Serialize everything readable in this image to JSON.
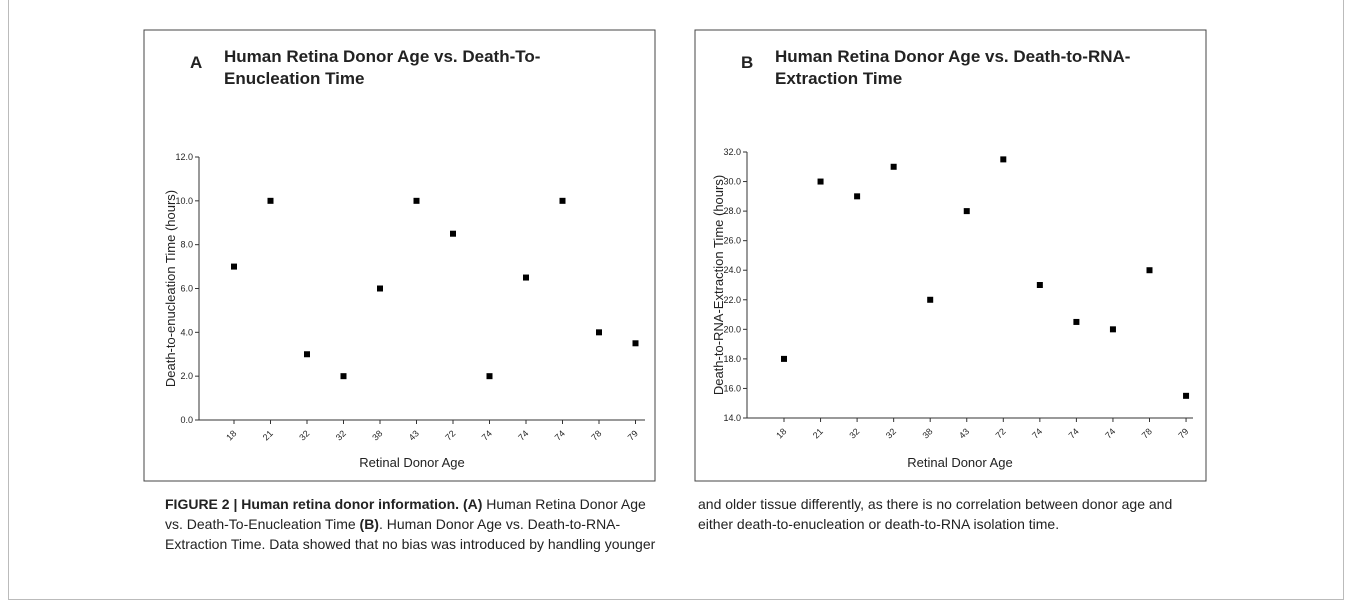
{
  "charts": [
    {
      "panel": "A",
      "type": "scatter",
      "title": [
        "Human Retina Donor Age vs. Death-To-",
        "Enucleation Time"
      ],
      "x_label": "Retinal Donor Age",
      "y_label": "Death-to-enucleation Time (hours)",
      "categories": [
        "18",
        "21",
        "32",
        "32",
        "38",
        "43",
        "72",
        "74",
        "74",
        "74",
        "78",
        "79"
      ],
      "values": [
        7.0,
        10.0,
        3.0,
        2.0,
        6.0,
        10.0,
        8.5,
        2.0,
        6.5,
        10.0,
        4.0,
        3.5
      ],
      "color": "#000000",
      "ylim": [
        0,
        12
      ],
      "yticks": [
        {
          "value": 0,
          "label": "0.0"
        },
        {
          "value": 2,
          "label": "2.0"
        },
        {
          "value": 4,
          "label": "4.0"
        },
        {
          "value": 6,
          "label": "6.0"
        },
        {
          "value": 8,
          "label": "8.0"
        },
        {
          "value": 10,
          "label": "10.0"
        },
        {
          "value": 12,
          "label": "12.0"
        }
      ]
    },
    {
      "panel": "B",
      "type": "scatter",
      "title": [
        "Human Retina Donor Age vs. Death-to-RNA-",
        "Extraction Time"
      ],
      "x_label": "Retinal Donor Age",
      "y_label": "Death-to-RNA-Extraction Time (hours)",
      "categories": [
        "18",
        "21",
        "32",
        "32",
        "38",
        "43",
        "72",
        "74",
        "74",
        "74",
        "78",
        "79"
      ],
      "values": [
        18.0,
        30.0,
        29.0,
        31.0,
        22.0,
        28.0,
        31.5,
        23.0,
        20.5,
        20.0,
        24.0,
        15.5
      ],
      "color": "#000000",
      "ylim": [
        14,
        32
      ],
      "yticks": [
        {
          "value": 14,
          "label": "14.0"
        },
        {
          "value": 16,
          "label": "16.0"
        },
        {
          "value": 18,
          "label": "18.0"
        },
        {
          "value": 20,
          "label": "20.0"
        },
        {
          "value": 22,
          "label": "22.0"
        },
        {
          "value": 24,
          "label": "24.0"
        },
        {
          "value": 26,
          "label": "26.0"
        },
        {
          "value": 28,
          "label": "28.0"
        },
        {
          "value": 30,
          "label": "30.0"
        },
        {
          "value": 32,
          "label": "32.0"
        }
      ]
    }
  ],
  "caption": [
    {
      "text": "FIGURE 2 | Human retina donor information.",
      "bold": true
    },
    {
      "text": " ",
      "bold": false
    },
    {
      "text": "(A)",
      "bold": true
    },
    {
      "text": " Human Retina Donor Age vs. Death-To-Enucleation Time ",
      "bold": false
    },
    {
      "text": "(B)",
      "bold": true
    },
    {
      "text": ". Human Donor Age vs. Death-to-RNA-Extraction Time. Data showed that no bias was introduced by handling younger and older tissue differently, as there is no correlation between donor age and either death-to-enucleation or death-to-RNA isolation time.",
      "bold": false
    }
  ]
}
